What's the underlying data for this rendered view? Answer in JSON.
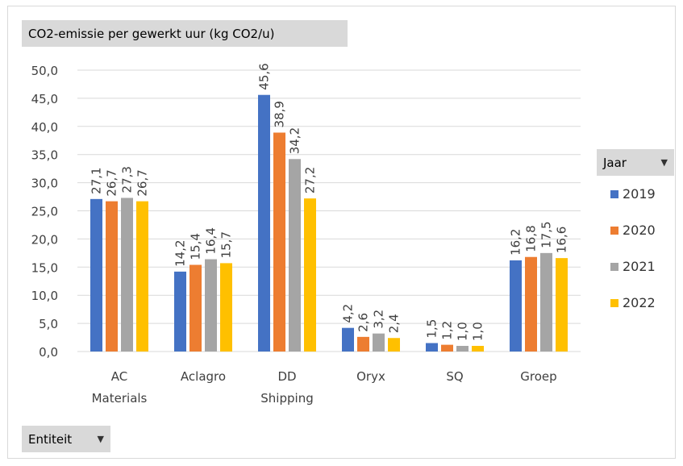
{
  "chart_data": {
    "type": "bar",
    "title": "CO2-emissie per gewerkt uur (kg CO2/u)",
    "xlabel": "",
    "ylabel": "",
    "ylim": [
      0,
      50
    ],
    "yticks": [
      "0,0",
      "5,0",
      "10,0",
      "15,0",
      "20,0",
      "25,0",
      "30,0",
      "35,0",
      "40,0",
      "45,0",
      "50,0"
    ],
    "categories": [
      [
        "AC",
        "Materials"
      ],
      [
        "Aclagro"
      ],
      [
        "DD",
        "Shipping"
      ],
      [
        "Oryx"
      ],
      [
        "SQ"
      ],
      [
        "Groep"
      ]
    ],
    "series": [
      {
        "name": "2019",
        "color": "#4472c4",
        "values": [
          27.1,
          14.2,
          45.6,
          4.2,
          1.5,
          16.2
        ]
      },
      {
        "name": "2020",
        "color": "#ed7d31",
        "values": [
          26.7,
          15.4,
          38.9,
          2.6,
          1.2,
          16.8
        ]
      },
      {
        "name": "2021",
        "color": "#a5a5a5",
        "values": [
          27.3,
          16.4,
          34.2,
          3.2,
          1.0,
          17.5
        ]
      },
      {
        "name": "2022",
        "color": "#ffc000",
        "values": [
          26.7,
          15.7,
          27.2,
          2.4,
          1.0,
          16.6
        ]
      }
    ],
    "grid": true,
    "legend_placement": "right"
  },
  "legend": {
    "field_label": "Jaar"
  },
  "axis_field": {
    "label": "Entiteit"
  },
  "icons": {
    "dropdown": "dropdown-arrow-icon"
  }
}
